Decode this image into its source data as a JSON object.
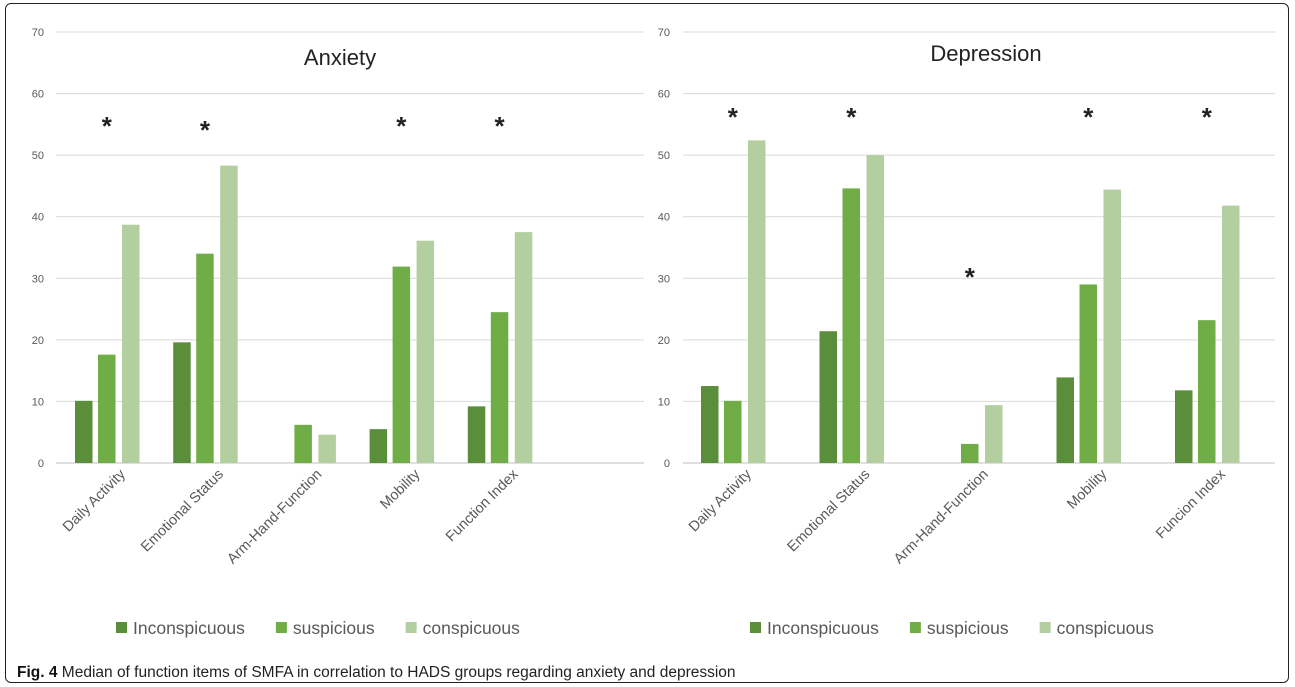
{
  "caption": {
    "label": "Fig. 4",
    "text": "Median of function items of SMFA in correlation to HADS groups regarding anxiety and depression"
  },
  "colors": {
    "Inconspicuous": "#5b8e3a",
    "suspicious": "#70ad47",
    "conspicuous": "#b3cfa0",
    "gridline": "#d9d9d9",
    "tick_text": "#595959",
    "title_text": "#222222"
  },
  "chart_data": [
    {
      "type": "bar",
      "title": "Anxiety",
      "categories": [
        "Daily Activity",
        "Emotional Status",
        "Arm-Hand-Function",
        "Mobility",
        "Function Index"
      ],
      "series": [
        {
          "name": "Inconspicuous",
          "values": [
            10.1,
            19.6,
            0,
            5.5,
            9.2
          ]
        },
        {
          "name": "suspicious",
          "values": [
            17.6,
            34.0,
            6.2,
            31.9,
            24.5
          ]
        },
        {
          "name": "conspicuous",
          "values": [
            38.7,
            48.3,
            4.6,
            36.1,
            37.5
          ]
        }
      ],
      "significance": [
        "*",
        "*",
        "",
        "*",
        "*"
      ],
      "ylim": [
        0,
        70
      ],
      "yticks": [
        0,
        10,
        20,
        30,
        40,
        50,
        60,
        70
      ],
      "grid": true,
      "legend_position": "bottom"
    },
    {
      "type": "bar",
      "title": "Depression",
      "categories": [
        "Daily Activity",
        "Emotional Status",
        "Arm-Hand-Function",
        "Mobility",
        "Funcion Index"
      ],
      "series": [
        {
          "name": "Inconspicuous",
          "values": [
            12.5,
            21.4,
            0,
            13.9,
            11.8
          ]
        },
        {
          "name": "suspicious",
          "values": [
            10.1,
            44.6,
            3.1,
            29.0,
            23.2
          ]
        },
        {
          "name": "conspicuous",
          "values": [
            52.4,
            50.0,
            9.4,
            44.4,
            41.8
          ]
        }
      ],
      "significance": [
        "*",
        "*",
        "*",
        "*",
        "*"
      ],
      "ylim": [
        0,
        70
      ],
      "yticks": [
        0,
        10,
        20,
        30,
        40,
        50,
        60,
        70
      ],
      "grid": true,
      "legend_position": "bottom"
    }
  ]
}
